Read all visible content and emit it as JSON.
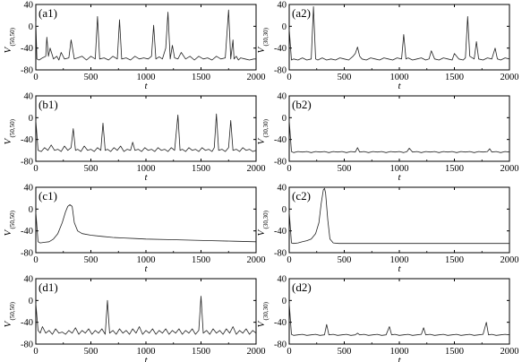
{
  "chart_data": [
    {
      "panel_label": "(a1)",
      "type": "line",
      "ylabel_main": "V",
      "ylabel_sub": "(50,50)",
      "xlabel": "t",
      "xlim": [
        0,
        2000
      ],
      "ylim": [
        -80,
        40
      ],
      "xticks": [
        "0",
        "500",
        "1000",
        "1500",
        "2000"
      ],
      "yticks": [
        "40",
        "0",
        "-40",
        "-80"
      ],
      "x": [
        0,
        10,
        30,
        60,
        90,
        100,
        115,
        130,
        160,
        190,
        210,
        230,
        260,
        300,
        320,
        350,
        380,
        420,
        460,
        500,
        540,
        560,
        580,
        620,
        660,
        700,
        740,
        760,
        780,
        820,
        860,
        900,
        940,
        980,
        1020,
        1050,
        1070,
        1090,
        1120,
        1150,
        1180,
        1200,
        1220,
        1240,
        1260,
        1290,
        1320,
        1360,
        1400,
        1440,
        1480,
        1520,
        1560,
        1600,
        1640,
        1680,
        1720,
        1750,
        1770,
        1790,
        1800,
        1820,
        1840,
        1860,
        1900,
        1940,
        1980,
        2000
      ],
      "y": [
        10,
        -60,
        -62,
        -58,
        -55,
        -20,
        -55,
        -40,
        -60,
        -55,
        -62,
        -48,
        -60,
        -58,
        -25,
        -60,
        -58,
        -55,
        -62,
        -55,
        -60,
        18,
        -60,
        -58,
        -62,
        -55,
        -60,
        12,
        -60,
        -58,
        -62,
        -55,
        -60,
        -58,
        -60,
        -55,
        2,
        -60,
        -56,
        -60,
        -40,
        26,
        -60,
        -35,
        -58,
        -60,
        -48,
        -60,
        -55,
        -62,
        -55,
        -60,
        -58,
        -62,
        -55,
        -60,
        -58,
        30,
        -60,
        -25,
        -60,
        -55,
        -62,
        -58,
        -60,
        -62,
        -60,
        -60
      ]
    },
    {
      "panel_label": "(a2)",
      "type": "line",
      "ylabel_main": "V",
      "ylabel_sub": "(30,30)",
      "xlabel": "t",
      "xlim": [
        0,
        2000
      ],
      "ylim": [
        -80,
        40
      ],
      "xticks": [
        "0",
        "500",
        "1000",
        "1500",
        "2000"
      ],
      "yticks": [
        "40",
        "0",
        "-40",
        "-80"
      ],
      "x": [
        0,
        20,
        40,
        80,
        120,
        160,
        200,
        220,
        240,
        260,
        300,
        340,
        380,
        420,
        460,
        500,
        540,
        580,
        600,
        620,
        640,
        660,
        700,
        740,
        780,
        820,
        860,
        900,
        940,
        980,
        1020,
        1040,
        1060,
        1080,
        1120,
        1160,
        1200,
        1240,
        1270,
        1290,
        1320,
        1360,
        1400,
        1440,
        1480,
        1500,
        1540,
        1580,
        1600,
        1620,
        1640,
        1680,
        1700,
        1720,
        1760,
        1800,
        1840,
        1870,
        1890,
        1920,
        1960,
        2000
      ],
      "y": [
        -5,
        -62,
        -60,
        -62,
        -58,
        -62,
        -60,
        36,
        -60,
        -62,
        -58,
        -62,
        -60,
        -62,
        -58,
        -60,
        -62,
        -55,
        -50,
        -38,
        -55,
        -60,
        -62,
        -58,
        -60,
        -62,
        -58,
        -60,
        -62,
        -58,
        -60,
        -15,
        -60,
        -58,
        -62,
        -60,
        -58,
        -62,
        -60,
        -45,
        -60,
        -62,
        -58,
        -60,
        -62,
        -50,
        -60,
        -62,
        -58,
        18,
        -55,
        -60,
        -28,
        -60,
        -62,
        -58,
        -60,
        -40,
        -60,
        -62,
        -58,
        -60
      ]
    },
    {
      "panel_label": "(b1)",
      "type": "line",
      "ylabel_main": "V",
      "ylabel_sub": "(50,50)",
      "xlabel": "t",
      "xlim": [
        0,
        2000
      ],
      "ylim": [
        -80,
        40
      ],
      "xticks": [
        "0",
        "500",
        "1000",
        "1500",
        "2000"
      ],
      "yticks": [
        "40",
        "0",
        "-40",
        "-80"
      ],
      "x": [
        0,
        20,
        50,
        80,
        110,
        140,
        170,
        200,
        230,
        260,
        290,
        320,
        340,
        360,
        380,
        410,
        440,
        470,
        500,
        530,
        560,
        590,
        610,
        630,
        650,
        680,
        710,
        740,
        770,
        800,
        830,
        860,
        880,
        900,
        930,
        960,
        990,
        1020,
        1050,
        1080,
        1110,
        1140,
        1170,
        1200,
        1230,
        1260,
        1290,
        1310,
        1330,
        1360,
        1390,
        1420,
        1450,
        1480,
        1510,
        1540,
        1570,
        1600,
        1620,
        1640,
        1660,
        1690,
        1720,
        1750,
        1770,
        1790,
        1820,
        1850,
        1880,
        1910,
        1940,
        1970,
        2000
      ],
      "y": [
        -5,
        -60,
        -62,
        -55,
        -60,
        -50,
        -60,
        -58,
        -62,
        -52,
        -60,
        -55,
        -20,
        -60,
        -58,
        -62,
        -52,
        -60,
        -58,
        -62,
        -55,
        -60,
        -10,
        -60,
        -58,
        -62,
        -55,
        -60,
        -52,
        -62,
        -58,
        -60,
        -45,
        -60,
        -58,
        -62,
        -55,
        -60,
        -58,
        -62,
        -55,
        -60,
        -58,
        -62,
        -55,
        -60,
        5,
        -60,
        -58,
        -62,
        -55,
        -60,
        -58,
        -62,
        -55,
        -60,
        -58,
        -62,
        -55,
        7,
        -60,
        -58,
        -62,
        -55,
        -5,
        -60,
        -58,
        -62,
        -55,
        -60,
        -58,
        -62,
        -60
      ]
    },
    {
      "panel_label": "(b2)",
      "type": "line",
      "ylabel_main": "V",
      "ylabel_sub": "(30,30)",
      "xlabel": "t",
      "xlim": [
        0,
        2000
      ],
      "ylim": [
        -80,
        40
      ],
      "xticks": [
        "0",
        "500",
        "1000",
        "1500",
        "2000"
      ],
      "yticks": [
        "40",
        "0",
        "-40",
        "-80"
      ],
      "x": [
        0,
        20,
        40,
        80,
        120,
        160,
        200,
        240,
        280,
        320,
        360,
        400,
        440,
        480,
        520,
        560,
        600,
        620,
        640,
        680,
        720,
        760,
        800,
        840,
        880,
        920,
        960,
        1000,
        1040,
        1070,
        1090,
        1120,
        1160,
        1200,
        1240,
        1280,
        1320,
        1360,
        1400,
        1440,
        1480,
        1520,
        1560,
        1600,
        1640,
        1680,
        1720,
        1760,
        1800,
        1820,
        1840,
        1880,
        1920,
        1960,
        2000
      ],
      "y": [
        -5,
        -62,
        -64,
        -62,
        -63,
        -62,
        -64,
        -62,
        -63,
        -62,
        -64,
        -62,
        -63,
        -62,
        -64,
        -62,
        -63,
        -55,
        -63,
        -62,
        -64,
        -62,
        -63,
        -62,
        -64,
        -62,
        -63,
        -62,
        -64,
        -62,
        -56,
        -63,
        -62,
        -64,
        -62,
        -63,
        -62,
        -64,
        -62,
        -63,
        -62,
        -64,
        -62,
        -63,
        -62,
        -64,
        -62,
        -63,
        -62,
        -57,
        -63,
        -62,
        -64,
        -62,
        -63
      ]
    },
    {
      "panel_label": "(c1)",
      "type": "line",
      "ylabel_main": "V",
      "ylabel_sub": "(50,50)",
      "xlabel": "t",
      "xlim": [
        0,
        2000
      ],
      "ylim": [
        -80,
        40
      ],
      "xticks": [
        "0",
        "500",
        "1000",
        "1500",
        "2000"
      ],
      "yticks": [
        "40",
        "0",
        "-40",
        "-80"
      ],
      "x": [
        0,
        20,
        40,
        80,
        120,
        160,
        200,
        240,
        270,
        290,
        310,
        330,
        350,
        380,
        420,
        500,
        600,
        700,
        800,
        900,
        1000,
        1200,
        1400,
        1600,
        1800,
        2000
      ],
      "y": [
        -5,
        -60,
        -62,
        -61,
        -60,
        -55,
        -45,
        -25,
        -5,
        5,
        8,
        5,
        -25,
        -40,
        -45,
        -48,
        -50,
        -52,
        -53,
        -54,
        -55,
        -56,
        -57,
        -58,
        -59,
        -60
      ]
    },
    {
      "panel_label": "(c2)",
      "type": "line",
      "ylabel_main": "V",
      "ylabel_sub": "(30,30)",
      "xlabel": "t",
      "xlim": [
        0,
        2000
      ],
      "ylim": [
        -80,
        40
      ],
      "xticks": [
        "0",
        "500",
        "1000",
        "1500",
        "2000"
      ],
      "yticks": [
        "40",
        "0",
        "-40",
        "-80"
      ],
      "x": [
        0,
        20,
        40,
        80,
        120,
        160,
        200,
        240,
        270,
        290,
        310,
        320,
        330,
        350,
        370,
        400,
        450,
        500,
        600,
        800,
        1000,
        1200,
        1400,
        1600,
        1800,
        2000
      ],
      "y": [
        -5,
        -62,
        -63,
        -62,
        -60,
        -58,
        -55,
        -45,
        -25,
        10,
        35,
        38,
        30,
        -20,
        -55,
        -62,
        -63,
        -63,
        -63,
        -63,
        -63,
        -63,
        -63,
        -63,
        -63,
        -63
      ]
    },
    {
      "panel_label": "(d1)",
      "type": "line",
      "ylabel_main": "V",
      "ylabel_sub": "(50,50)",
      "xlabel": "t",
      "xlim": [
        0,
        2000
      ],
      "ylim": [
        -80,
        40
      ],
      "xticks": [
        "0",
        "500",
        "1000",
        "1500",
        "2000"
      ],
      "yticks": [
        "40",
        "0",
        "-40",
        "-80"
      ],
      "x": [
        0,
        20,
        40,
        60,
        90,
        120,
        150,
        180,
        210,
        240,
        270,
        300,
        330,
        360,
        390,
        420,
        450,
        480,
        510,
        540,
        570,
        600,
        630,
        650,
        670,
        700,
        730,
        760,
        790,
        820,
        850,
        880,
        910,
        940,
        970,
        1000,
        1030,
        1060,
        1090,
        1120,
        1150,
        1180,
        1210,
        1240,
        1270,
        1300,
        1330,
        1360,
        1390,
        1420,
        1450,
        1480,
        1500,
        1520,
        1550,
        1580,
        1610,
        1640,
        1670,
        1700,
        1730,
        1760,
        1790,
        1820,
        1850,
        1880,
        1910,
        1940,
        1970,
        2000
      ],
      "y": [
        -5,
        -55,
        -60,
        -48,
        -60,
        -55,
        -62,
        -52,
        -60,
        -58,
        -62,
        -55,
        -60,
        -50,
        -62,
        -55,
        -60,
        -52,
        -62,
        -55,
        -60,
        -52,
        -62,
        0,
        -60,
        -55,
        -62,
        -52,
        -60,
        -55,
        -62,
        -52,
        -60,
        -48,
        -62,
        -55,
        -60,
        -52,
        -62,
        -55,
        -60,
        -52,
        -62,
        -55,
        -60,
        -52,
        -62,
        -55,
        -60,
        -52,
        -62,
        -55,
        8,
        -60,
        -55,
        -62,
        -52,
        -60,
        -55,
        -62,
        -52,
        -60,
        -48,
        -62,
        -55,
        -60,
        -52,
        -62,
        -55,
        -60
      ]
    },
    {
      "panel_label": "(d2)",
      "type": "line",
      "ylabel_main": "V",
      "ylabel_sub": "(30,30)",
      "xlabel": "t",
      "xlim": [
        0,
        2000
      ],
      "ylim": [
        -80,
        40
      ],
      "xticks": [
        "0",
        "500",
        "1000",
        "1500",
        "2000"
      ],
      "yticks": [
        "40",
        "0",
        "-40",
        "-80"
      ],
      "x": [
        0,
        20,
        40,
        80,
        120,
        160,
        200,
        240,
        280,
        320,
        340,
        360,
        400,
        440,
        480,
        520,
        560,
        600,
        620,
        640,
        680,
        720,
        760,
        800,
        840,
        880,
        910,
        930,
        960,
        1000,
        1040,
        1080,
        1120,
        1160,
        1200,
        1220,
        1240,
        1280,
        1320,
        1360,
        1400,
        1440,
        1480,
        1520,
        1560,
        1600,
        1640,
        1680,
        1720,
        1760,
        1790,
        1810,
        1840,
        1880,
        1920,
        1960,
        2000
      ],
      "y": [
        -5,
        -62,
        -64,
        -63,
        -62,
        -64,
        -63,
        -62,
        -64,
        -63,
        -44,
        -63,
        -62,
        -64,
        -63,
        -62,
        -64,
        -63,
        -60,
        -63,
        -62,
        -64,
        -63,
        -62,
        -64,
        -63,
        -48,
        -63,
        -62,
        -64,
        -63,
        -62,
        -64,
        -63,
        -62,
        -50,
        -63,
        -62,
        -64,
        -63,
        -62,
        -64,
        -63,
        -62,
        -64,
        -63,
        -62,
        -64,
        -63,
        -62,
        -40,
        -63,
        -62,
        -64,
        -63,
        -62,
        -63
      ]
    }
  ]
}
